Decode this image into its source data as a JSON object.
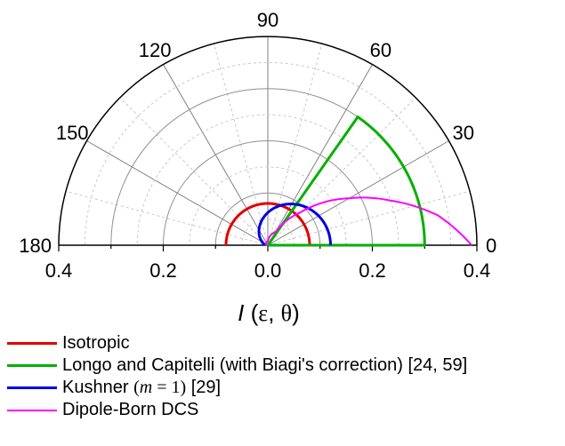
{
  "chart_data": {
    "type": "polar",
    "angular_ticks": [
      "0",
      "30",
      "60",
      "90",
      "120",
      "150",
      "180"
    ],
    "radial_ticks": [
      "0.4",
      "0.2",
      "0.0",
      "0.2",
      "0.4"
    ],
    "radial_range": [
      0,
      0.4
    ],
    "theta_range": [
      0,
      180
    ],
    "xlabel_parts": {
      "italic": "I",
      "rest_open": " (",
      "eps": "ε",
      "sep": ", ",
      "theta": "θ",
      "close": ")"
    },
    "grid": true,
    "series": [
      {
        "name": "Isotropic",
        "color": "#e00000",
        "model": "isotropic",
        "r": 0.08
      },
      {
        "name": "Longo and Capitelli (with Biagi's correction) [24, 59]",
        "color": "#00b000",
        "model": "sector",
        "r": 0.3,
        "theta_max": 55
      },
      {
        "name_parts": [
          "Kushner ",
          "(",
          "m",
          " = 1)",
          " [29]"
        ],
        "color": "#0000e0",
        "model": "kushner",
        "r0": 0.12,
        "r180": 0.005
      },
      {
        "name": "Dipole-Born DCS",
        "color": "#ff00ff",
        "model": "dipole",
        "points": [
          [
            0,
            0.39
          ],
          [
            10,
            0.33
          ],
          [
            20,
            0.25
          ],
          [
            30,
            0.18
          ],
          [
            45,
            0.09
          ],
          [
            60,
            0.03
          ],
          [
            90,
            0.008
          ],
          [
            180,
            0.002
          ]
        ]
      }
    ],
    "legend_position": "bottom"
  }
}
